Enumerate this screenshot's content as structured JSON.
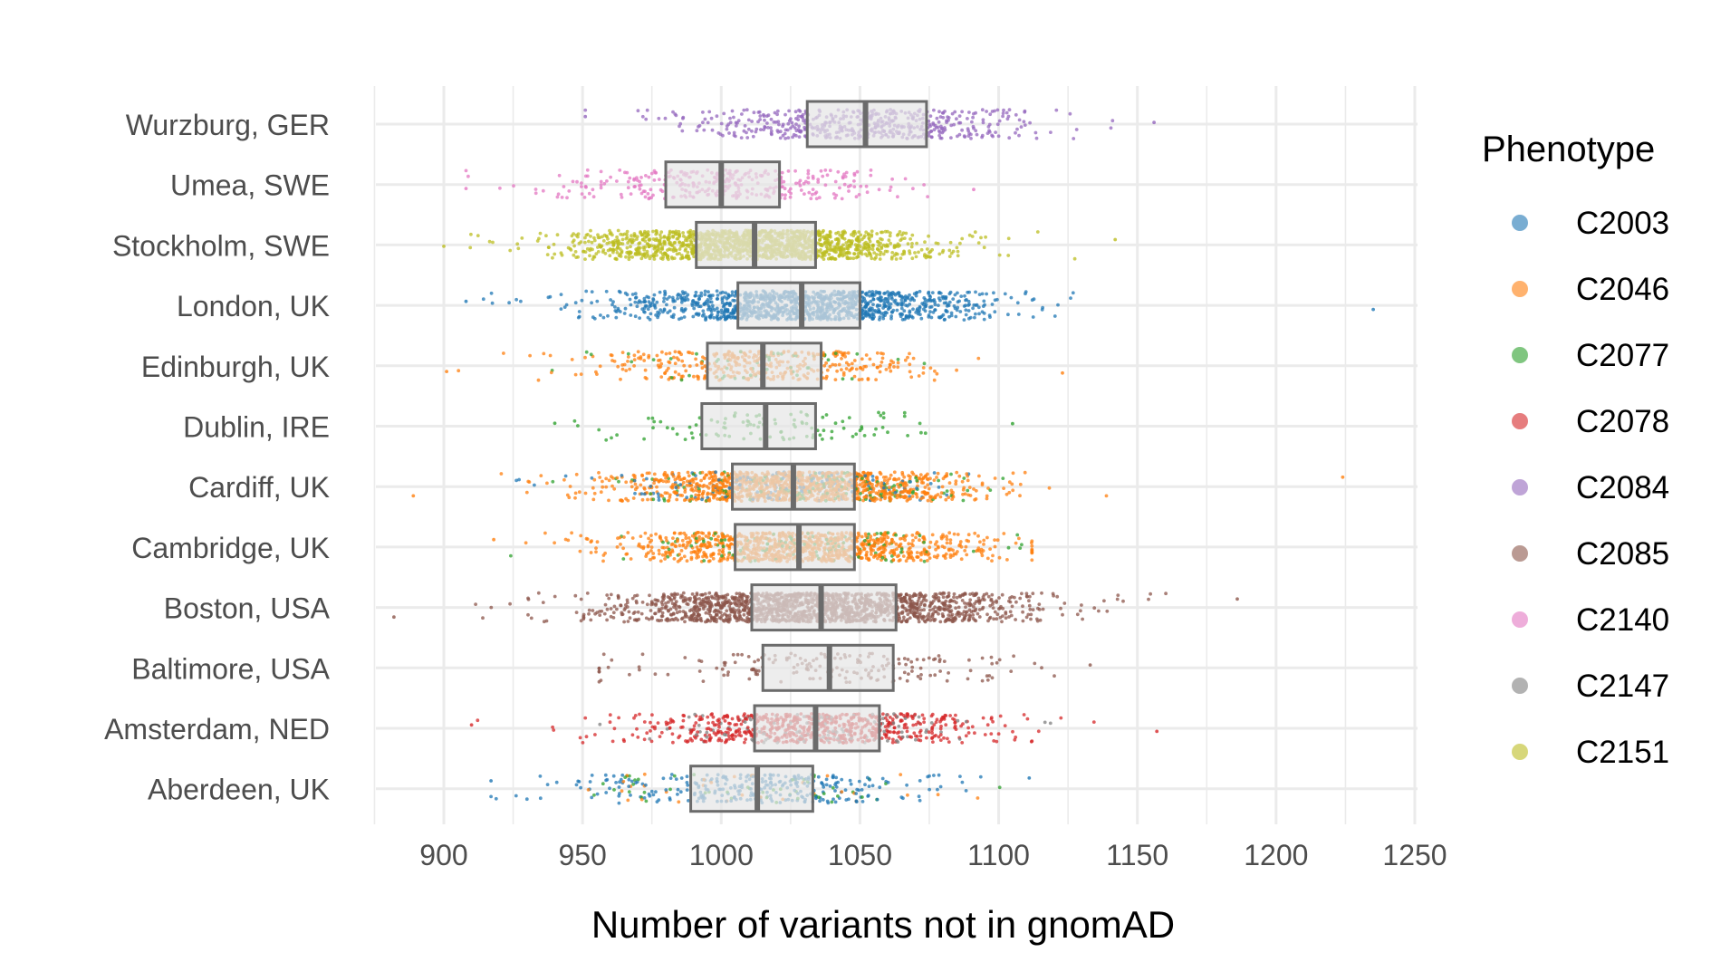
{
  "chart_data": {
    "type": "box-jitter",
    "xlabel": "Number of variants not in gnomAD",
    "ylabel": "",
    "xlim": [
      875,
      1250
    ],
    "x_ticks": [
      900,
      950,
      1000,
      1050,
      1100,
      1150,
      1200,
      1250
    ],
    "grid": true,
    "legend": {
      "title": "Phenotype",
      "position": "right",
      "entries": [
        {
          "name": "C2003",
          "color": "#1f77b4"
        },
        {
          "name": "C2046",
          "color": "#ff7f0e"
        },
        {
          "name": "C2077",
          "color": "#2ca02c"
        },
        {
          "name": "C2078",
          "color": "#d62728"
        },
        {
          "name": "C2084",
          "color": "#9467bd"
        },
        {
          "name": "C2085",
          "color": "#8c564b"
        },
        {
          "name": "C2140",
          "color": "#e377c2"
        },
        {
          "name": "C2147",
          "color": "#7f7f7f"
        },
        {
          "name": "C2151",
          "color": "#bcbd22"
        }
      ]
    },
    "categories": [
      "Wurzburg, GER",
      "Umea, SWE",
      "Stockholm, SWE",
      "London, UK",
      "Edinburgh, UK",
      "Dublin, IRE",
      "Cardiff, UK",
      "Cambridge, UK",
      "Boston, USA",
      "Baltimore, USA",
      "Amsterdam, NED",
      "Aberdeen, UK"
    ],
    "boxes": [
      {
        "category": "Wurzburg, GER",
        "q1": 1031,
        "median": 1052,
        "q3": 1074,
        "min": 951,
        "max": 1156,
        "phenotypes": [
          "C2084"
        ],
        "n": 520
      },
      {
        "category": "Umea, SWE",
        "q1": 980,
        "median": 1000,
        "q3": 1021,
        "min": 908,
        "max": 1091,
        "phenotypes": [
          "C2140"
        ],
        "n": 330
      },
      {
        "category": "Stockholm, SWE",
        "q1": 991,
        "median": 1012,
        "q3": 1034,
        "min": 900,
        "max": 1142,
        "phenotypes": [
          "C2151"
        ],
        "n": 1500
      },
      {
        "category": "London, UK",
        "q1": 1006,
        "median": 1029,
        "q3": 1050,
        "min": 908,
        "max": 1235,
        "phenotypes": [
          "C2003"
        ],
        "n": 1200
      },
      {
        "category": "Edinburgh, UK",
        "q1": 995,
        "median": 1015,
        "q3": 1036,
        "min": 901,
        "max": 1123,
        "phenotypes": [
          "C2046",
          "C2077"
        ],
        "n": 420
      },
      {
        "category": "Dublin, IRE",
        "q1": 993,
        "median": 1016,
        "q3": 1034,
        "min": 940,
        "max": 1105,
        "phenotypes": [
          "C2077"
        ],
        "n": 110
      },
      {
        "category": "Cardiff, UK",
        "q1": 1004,
        "median": 1026,
        "q3": 1048,
        "min": 889,
        "max": 1224,
        "phenotypes": [
          "C2046",
          "C2003",
          "C2077"
        ],
        "n": 1400
      },
      {
        "category": "Cambridge, UK",
        "q1": 1005,
        "median": 1028,
        "q3": 1048,
        "min": 918,
        "max": 1112,
        "phenotypes": [
          "C2046",
          "C2077"
        ],
        "n": 1100
      },
      {
        "category": "Boston, USA",
        "q1": 1011,
        "median": 1036,
        "q3": 1063,
        "min": 882,
        "max": 1186,
        "phenotypes": [
          "C2085"
        ],
        "n": 1700
      },
      {
        "category": "Baltimore, USA",
        "q1": 1015,
        "median": 1039,
        "q3": 1062,
        "min": 956,
        "max": 1133,
        "phenotypes": [
          "C2085"
        ],
        "n": 180
      },
      {
        "category": "Amsterdam, NED",
        "q1": 1012,
        "median": 1034,
        "q3": 1057,
        "min": 910,
        "max": 1157,
        "phenotypes": [
          "C2078",
          "C2147"
        ],
        "n": 800
      },
      {
        "category": "Aberdeen, UK",
        "q1": 989,
        "median": 1013,
        "q3": 1033,
        "min": 917,
        "max": 1111,
        "phenotypes": [
          "C2003",
          "C2046",
          "C2077"
        ],
        "n": 380
      }
    ]
  }
}
